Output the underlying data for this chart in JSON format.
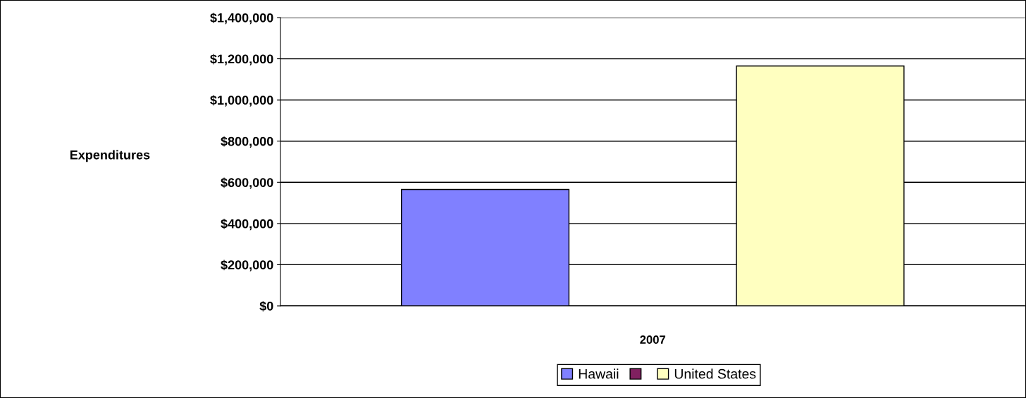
{
  "chart_data": {
    "type": "bar",
    "categories": [
      "2007"
    ],
    "ylabel": "Expenditures",
    "series": [
      {
        "name": "Hawaii",
        "color": "#8080ff",
        "values": [
          565000
        ]
      },
      {
        "color": "#802060",
        "values": [
          null
        ]
      },
      {
        "name": "United States",
        "color": "#ffffc0",
        "values": [
          1165000
        ]
      }
    ],
    "ylim": [
      0,
      1400000
    ],
    "yticks": [
      {
        "value": 0,
        "label": "$0"
      },
      {
        "value": 200000,
        "label": "$200,000"
      },
      {
        "value": 400000,
        "label": "$400,000"
      },
      {
        "value": 600000,
        "label": "$600,000"
      },
      {
        "value": 800000,
        "label": "$800,000"
      },
      {
        "value": 1000000,
        "label": "$1,000,000"
      },
      {
        "value": 1200000,
        "label": "$1,200,000"
      },
      {
        "value": 1400000,
        "label": "$1,400,000"
      }
    ],
    "grid": "y",
    "legend": "bottom"
  }
}
